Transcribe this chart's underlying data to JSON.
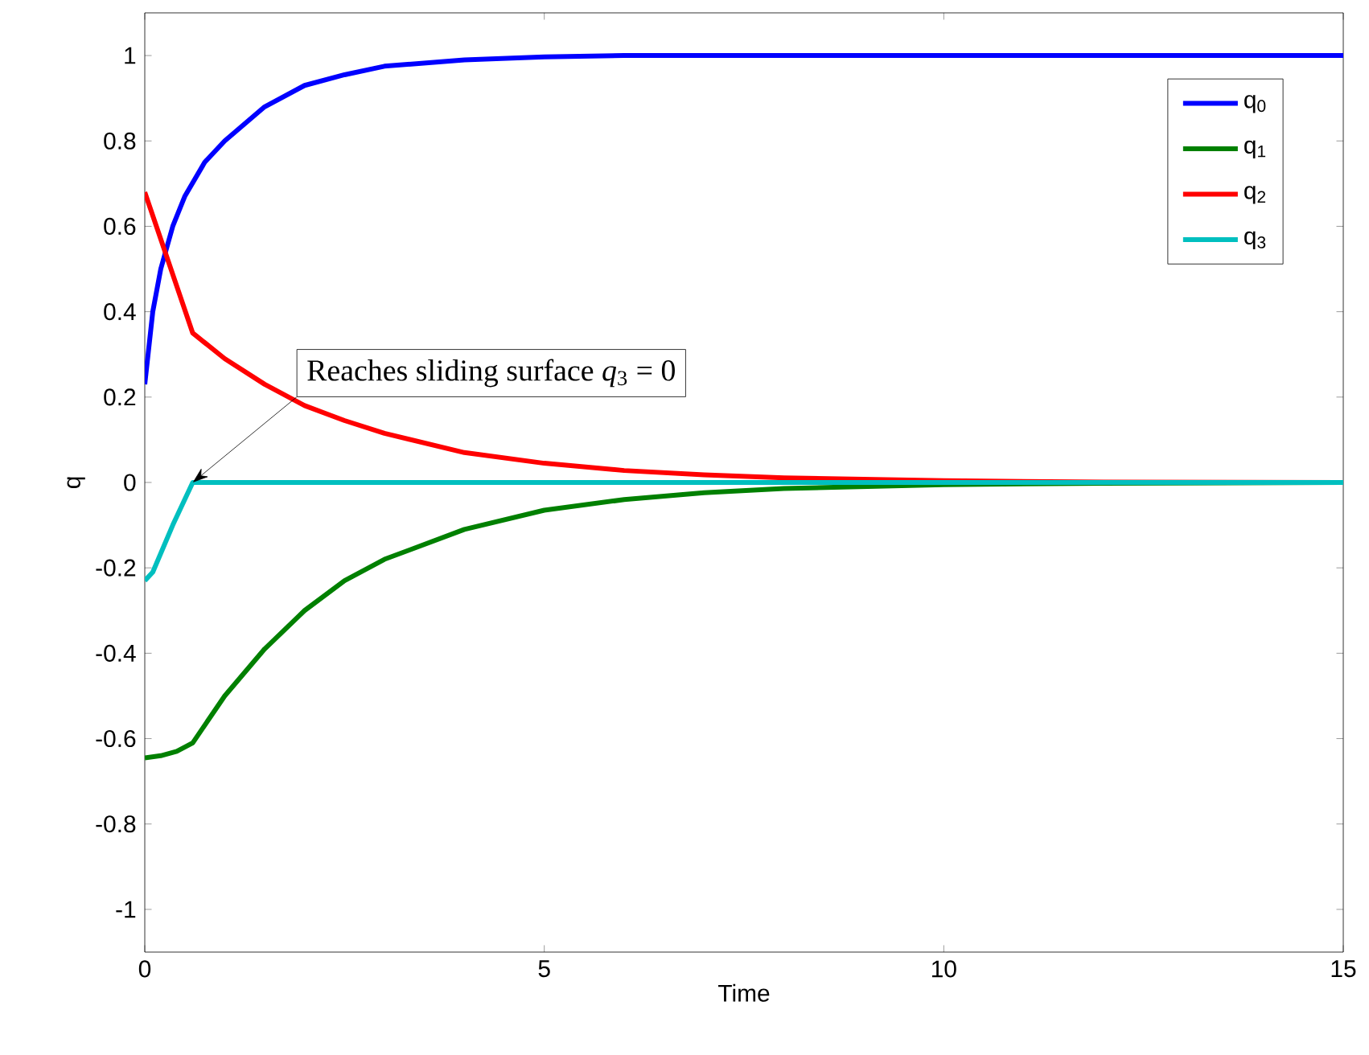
{
  "chart_data": {
    "type": "line",
    "xlabel": "Time",
    "ylabel": "q",
    "xlim": [
      0,
      15
    ],
    "ylim": [
      -1.1,
      1.1
    ],
    "xticks": [
      0,
      5,
      10,
      15
    ],
    "yticks": [
      -1,
      -0.8,
      -0.6,
      -0.4,
      -0.2,
      0,
      0.2,
      0.4,
      0.6,
      0.8,
      1
    ],
    "legend": "top right",
    "grid": false,
    "marker": "none",
    "line_style": "solid",
    "series": [
      {
        "name": "q$_{0}$",
        "color": "#0000ff",
        "x": [
          0,
          0.1,
          0.2,
          0.35,
          0.5,
          0.75,
          1,
          1.5,
          2,
          2.5,
          3,
          4,
          5,
          6,
          8,
          10,
          15
        ],
        "values": [
          0.23,
          0.4,
          0.5,
          0.6,
          0.67,
          0.75,
          0.8,
          0.88,
          0.93,
          0.955,
          0.975,
          0.99,
          0.997,
          1,
          1,
          1,
          1
        ]
      },
      {
        "name": "q$_{1}$",
        "color": "#008000",
        "x": [
          0,
          0.2,
          0.4,
          0.6,
          1,
          1.5,
          2,
          2.5,
          3,
          4,
          5,
          6,
          7,
          8,
          10,
          12,
          15
        ],
        "values": [
          -0.645,
          -0.64,
          -0.63,
          -0.61,
          -0.5,
          -0.39,
          -0.3,
          -0.23,
          -0.18,
          -0.11,
          -0.065,
          -0.04,
          -0.024,
          -0.014,
          -0.005,
          -0.002,
          0
        ]
      },
      {
        "name": "q$_{2}$",
        "color": "#ff0000",
        "x": [
          0,
          0.6,
          1,
          1.5,
          2,
          2.5,
          3,
          4,
          5,
          6,
          7,
          8,
          10,
          12,
          15
        ],
        "values": [
          0.68,
          0.35,
          0.29,
          0.23,
          0.18,
          0.145,
          0.115,
          0.07,
          0.045,
          0.028,
          0.018,
          0.011,
          0.004,
          0.001,
          0
        ]
      },
      {
        "name": "q$_{3}$",
        "color": "#00bfbf",
        "x": [
          0,
          0.1,
          0.35,
          0.6,
          2,
          5,
          10,
          15
        ],
        "values": [
          -0.23,
          -0.21,
          -0.1,
          0,
          0,
          0,
          0,
          0
        ]
      }
    ],
    "annotations": [
      {
        "text": "Reaches sliding surface *q*$_{3}$ = 0",
        "x": 0.6,
        "y": 0
      }
    ]
  }
}
